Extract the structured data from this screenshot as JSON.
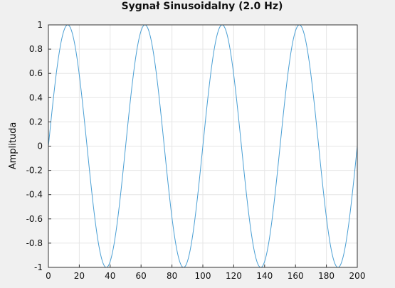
{
  "chart_data": {
    "type": "line",
    "title": "Sygnał Sinusoidalny (2.0 Hz)",
    "xlabel": "",
    "ylabel": "Amplituda",
    "xlim": [
      0,
      200
    ],
    "ylim": [
      -1,
      1
    ],
    "x_ticks": [
      "0",
      "20",
      "40",
      "60",
      "80",
      "100",
      "120",
      "140",
      "160",
      "180",
      "200"
    ],
    "y_ticks": [
      "1",
      "0.8",
      "0.6",
      "0.4",
      "0.2",
      "0",
      "-0.2",
      "-0.4",
      "-0.6",
      "-0.8",
      "-1"
    ],
    "grid": true,
    "series": [
      {
        "function": "sin",
        "amplitude": 1,
        "period": 50,
        "phase": 0,
        "x_range": [
          0,
          200
        ],
        "color": "#4a9fd4"
      }
    ]
  },
  "colors": {
    "background": "#f0f0f0",
    "plot_area": "#ffffff",
    "grid": "#e6e6e6",
    "axis": "#333333"
  }
}
